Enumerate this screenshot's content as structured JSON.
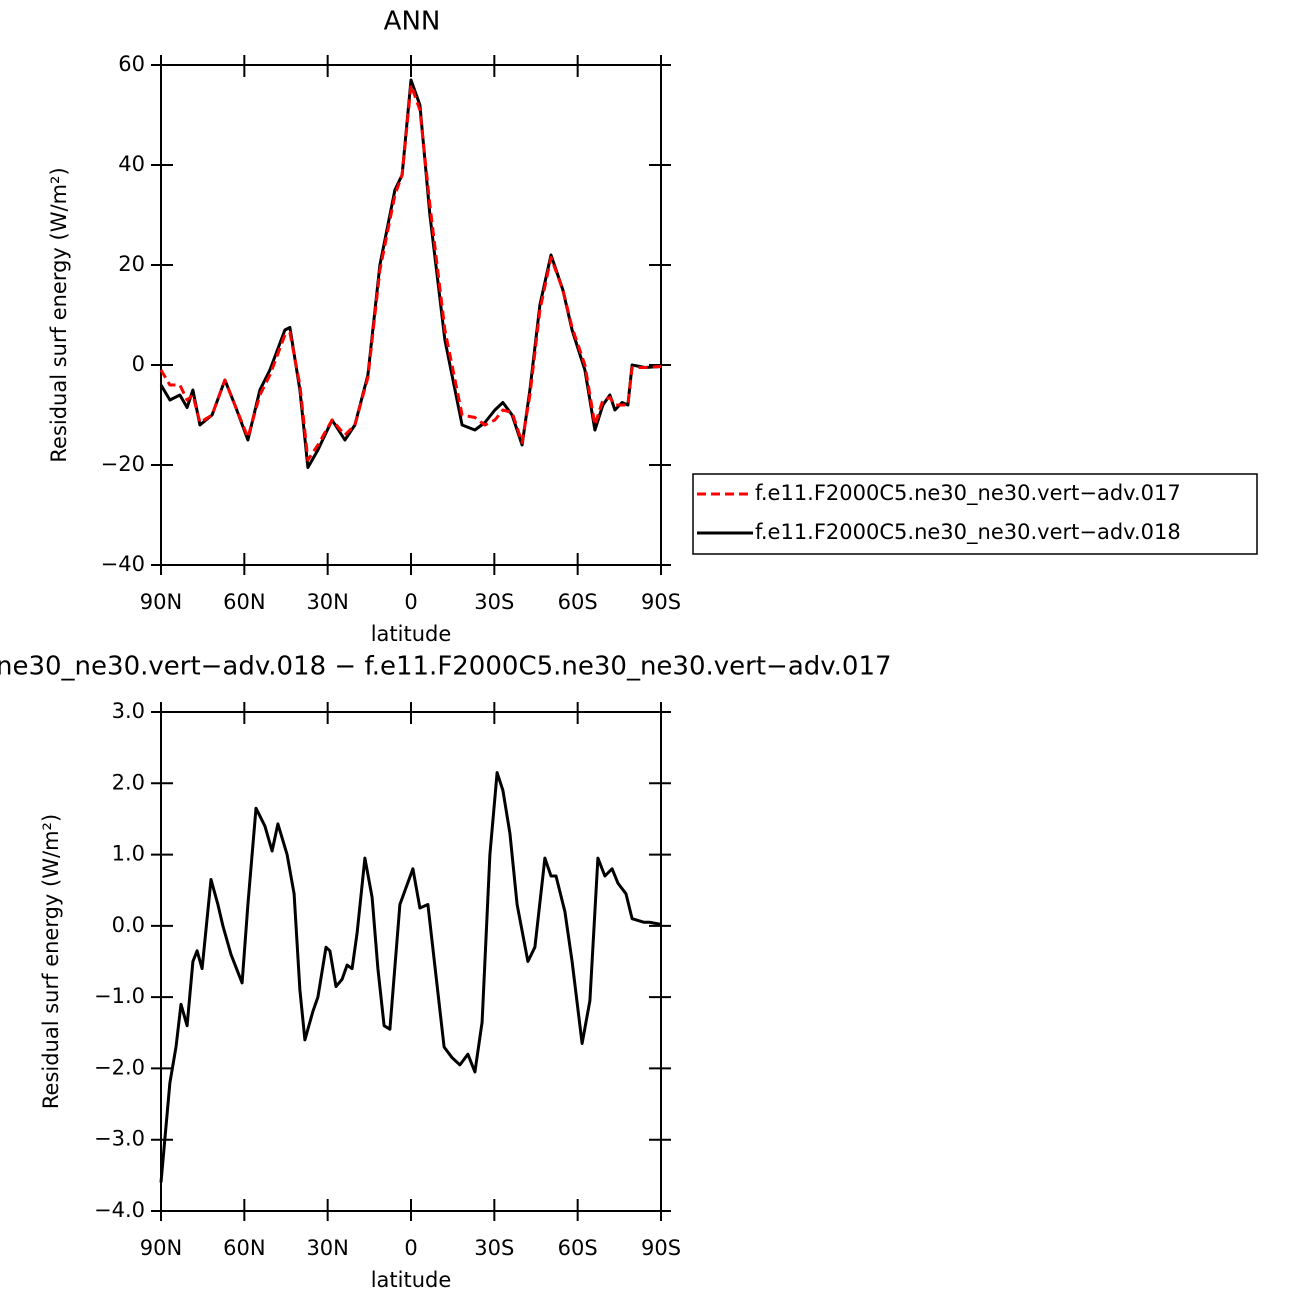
{
  "chart_data": [
    {
      "type": "line",
      "title": "ANN",
      "xlabel": "latitude",
      "ylabel": "Residual surf energy (W/m²)",
      "x": [
        90,
        86.8,
        83.2,
        80.6,
        78.5,
        76,
        71.6,
        67,
        63.4,
        58.7,
        54.4,
        50.8,
        45.4,
        43.6,
        40,
        37.1,
        33.5,
        28.4,
        23.8,
        20.2,
        15.5,
        11.2,
        5.8,
        3.2,
        0,
        -3.2,
        -6.8,
        -12.2,
        -18.4,
        -23,
        -26.6,
        -30.2,
        -33.1,
        -36.4,
        -40,
        -42.8,
        -46.4,
        -50.4,
        -54.7,
        -58,
        -62.6,
        -66.2,
        -69.1,
        -71.6,
        -73.4,
        -76,
        -78.1,
        -79.6,
        -84.2,
        -90
      ],
      "series": [
        {
          "name": "f.e11.F2000C5.ne30_ne30.vert−adv.017",
          "color": "#ff0000",
          "dash": true,
          "values": [
            -1,
            -4,
            -4,
            -7,
            -6,
            -11.5,
            -10,
            -3,
            -8,
            -14.5,
            -6,
            -2,
            6,
            6.5,
            -4,
            -19,
            -16,
            -11,
            -14,
            -12,
            -2.5,
            19,
            34,
            38,
            56,
            51,
            32,
            7,
            -10,
            -10.5,
            -12,
            -11,
            -9,
            -9.5,
            -15.5,
            -6,
            11,
            21.5,
            15,
            7.5,
            0,
            -12,
            -7,
            -6.5,
            -8,
            -8,
            -8,
            -0.5,
            -0.5,
            -0.3
          ]
        },
        {
          "name": "f.e11.F2000C5.ne30_ne30.vert−adv.018",
          "color": "#000000",
          "dash": false,
          "values": [
            -4,
            -7,
            -6,
            -8.5,
            -5,
            -12,
            -10,
            -3,
            -8,
            -15,
            -5,
            -1,
            7,
            7.5,
            -5,
            -20.5,
            -17,
            -11,
            -15,
            -12,
            -2,
            20,
            35,
            38,
            57,
            52,
            30,
            5,
            -12,
            -13,
            -11.5,
            -9,
            -7.5,
            -10,
            -16,
            -5,
            12,
            22,
            15,
            7,
            -1,
            -13,
            -8,
            -6,
            -9,
            -7.5,
            -8,
            0,
            -0.5,
            -0.3
          ]
        }
      ],
      "xlim": [
        90,
        -90
      ],
      "xticks": [
        {
          "value": 90,
          "label": "90N"
        },
        {
          "value": 60,
          "label": "60N"
        },
        {
          "value": 30,
          "label": "30N"
        },
        0,
        {
          "value": -30,
          "label": "30S"
        },
        {
          "value": -60,
          "label": "60S"
        },
        {
          "value": -90,
          "label": "90S"
        }
      ],
      "ylim": [
        -40,
        60
      ],
      "yticks": [
        {
          "value": -40,
          "label": "−40"
        },
        {
          "value": -20,
          "label": "−20"
        },
        0,
        20,
        40,
        60
      ],
      "legend": "right"
    },
    {
      "type": "line",
      "title": "ne30_ne30.vert−adv.018 − f.e11.F2000C5.ne30_ne30.vert−adv.017",
      "xlabel": "latitude",
      "ylabel": "Residual surf energy (W/m²)",
      "x": [
        90,
        86.8,
        84.6,
        82.8,
        80.6,
        78.5,
        77,
        75.2,
        72,
        69.5,
        67.7,
        64.8,
        60.8,
        58.7,
        55.8,
        52.6,
        50,
        47.9,
        44.6,
        42.1,
        40,
        38.2,
        35.3,
        33.5,
        30.6,
        29.2,
        27,
        24.8,
        23,
        21.2,
        19.4,
        16.6,
        14,
        11.9,
        9.7,
        7.6,
        4,
        -0.7,
        -3.2,
        -6.1,
        -9,
        -11.9,
        -14.8,
        -17.6,
        -20.5,
        -23,
        -25.6,
        -28.4,
        -31,
        -33.1,
        -35.6,
        -38.2,
        -42.1,
        -44.6,
        -48.2,
        -50.4,
        -52.2,
        -55.4,
        -58,
        -61.6,
        -64.4,
        -67.3,
        -69.8,
        -72.4,
        -74.5,
        -77.4,
        -79.6,
        -83.9,
        -86,
        -90
      ],
      "series": [
        {
          "color": "#000000",
          "dash": false,
          "values": [
            -3.6,
            -2.2,
            -1.7,
            -1.1,
            -1.4,
            -0.5,
            -0.35,
            -0.6,
            0.65,
            0.3,
            0,
            -0.4,
            -0.8,
            0.3,
            1.65,
            1.4,
            1.05,
            1.43,
            1.0,
            0.45,
            -0.9,
            -1.6,
            -1.2,
            -1.0,
            -0.3,
            -0.35,
            -0.85,
            -0.75,
            -0.55,
            -0.6,
            -0.1,
            0.95,
            0.4,
            -0.6,
            -1.4,
            -1.45,
            0.3,
            0.8,
            0.25,
            0.3,
            -0.7,
            -1.7,
            -1.85,
            -1.95,
            -1.8,
            -2.05,
            -1.35,
            1.0,
            2.15,
            1.9,
            1.3,
            0.3,
            -0.5,
            -0.3,
            0.95,
            0.7,
            0.7,
            0.2,
            -0.5,
            -1.65,
            -1.05,
            0.95,
            0.7,
            0.8,
            0.6,
            0.45,
            0.1,
            0.05,
            0.05,
            0.02
          ]
        }
      ],
      "xlim": [
        90,
        -90
      ],
      "xticks": [
        {
          "value": 90,
          "label": "90N"
        },
        {
          "value": 60,
          "label": "60N"
        },
        {
          "value": 30,
          "label": "30N"
        },
        0,
        {
          "value": -30,
          "label": "30S"
        },
        {
          "value": -60,
          "label": "60S"
        },
        {
          "value": -90,
          "label": "90S"
        }
      ],
      "ylim": [
        -4,
        3
      ],
      "yticks": [
        {
          "value": -4,
          "label": "−4.0"
        },
        {
          "value": -3,
          "label": "−3.0"
        },
        {
          "value": -2,
          "label": "−2.0"
        },
        {
          "value": -1,
          "label": "−1.0"
        },
        {
          "value": 0,
          "label": "0.0"
        },
        {
          "value": 1,
          "label": "1.0"
        },
        {
          "value": 2,
          "label": "2.0"
        },
        {
          "value": 3,
          "label": "3.0"
        }
      ]
    }
  ]
}
